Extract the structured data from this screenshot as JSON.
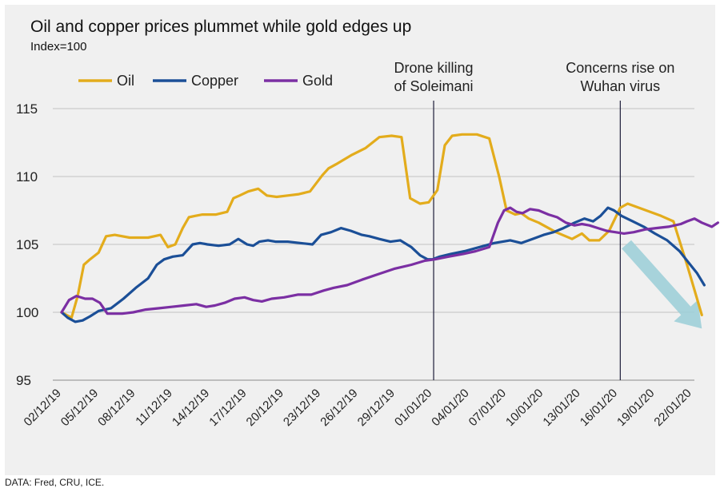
{
  "chart_data": {
    "type": "line",
    "title": "Oil and copper prices plummet while gold edges up",
    "subtitle": "Index=100",
    "source": "DATA: Fred, CRU, ICE.",
    "ylabel": "",
    "xlabel": "",
    "ylim": [
      95,
      115
    ],
    "yticks": [
      95,
      100,
      105,
      110,
      115
    ],
    "grid": true,
    "legend_position": "top-left",
    "x_start": "2019-12-02",
    "x_end": "2020-01-24",
    "x_ticks": [
      {
        "day": 0,
        "label": "02/12/19"
      },
      {
        "day": 3,
        "label": "05/12/19"
      },
      {
        "day": 6,
        "label": "08/12/19"
      },
      {
        "day": 9,
        "label": "11/12/19"
      },
      {
        "day": 12,
        "label": "14/12/19"
      },
      {
        "day": 15,
        "label": "17/12/19"
      },
      {
        "day": 18,
        "label": "20/12/19"
      },
      {
        "day": 21,
        "label": "23/12/19"
      },
      {
        "day": 24,
        "label": "26/12/19"
      },
      {
        "day": 27,
        "label": "29/12/19"
      },
      {
        "day": 30,
        "label": "01/01/20"
      },
      {
        "day": 33,
        "label": "04/01/20"
      },
      {
        "day": 36,
        "label": "07/01/20"
      },
      {
        "day": 39,
        "label": "10/01/20"
      },
      {
        "day": 42,
        "label": "13/01/20"
      },
      {
        "day": 45,
        "label": "16/01/20"
      },
      {
        "day": 48,
        "label": "19/01/20"
      },
      {
        "day": 51,
        "label": "22/01/20"
      }
    ],
    "series": [
      {
        "name": "Oil",
        "color": "#e3ac1c",
        "days": [
          0,
          0.8,
          1.3,
          1.8,
          2.3,
          3.0,
          3.6,
          4.3,
          5.5,
          7.0,
          8.0,
          8.6,
          9.2,
          9.8,
          10.3,
          10.8,
          11.4,
          12.5,
          13.4,
          13.9,
          14.4,
          15.1,
          15.9,
          16.6,
          17.4,
          18.3,
          19.2,
          20.1,
          21.1,
          21.6,
          22.2,
          23.5,
          24.6,
          25.7,
          26.7,
          27.5,
          28.2,
          29.0,
          29.7,
          30.4,
          31.0,
          31.6,
          32.4,
          33.6,
          34.6,
          35.4,
          36.0,
          36.7,
          37.2,
          37.8,
          38.6,
          40.0,
          41.3,
          42.1,
          42.7,
          43.5,
          44.3,
          45.2,
          45.8,
          47.0,
          48.5,
          49.5,
          50.6,
          51.8
        ],
        "values": [
          100.0,
          99.6,
          101.2,
          103.5,
          103.9,
          104.4,
          105.6,
          105.7,
          105.5,
          105.5,
          105.7,
          104.8,
          105.0,
          106.2,
          107.0,
          107.1,
          107.2,
          107.2,
          107.4,
          108.4,
          108.6,
          108.9,
          109.1,
          108.6,
          108.5,
          108.6,
          108.7,
          108.9,
          110.1,
          110.6,
          110.9,
          111.6,
          112.1,
          112.9,
          113.0,
          112.9,
          108.4,
          108.0,
          108.1,
          109.0,
          112.3,
          113.0,
          113.1,
          113.1,
          112.8,
          110.0,
          107.5,
          107.2,
          107.3,
          106.9,
          106.6,
          105.9,
          105.4,
          105.8,
          105.3,
          105.3,
          106.0,
          107.7,
          108.0,
          107.6,
          107.1,
          106.7,
          103.5,
          99.8
        ]
      },
      {
        "name": "Copper",
        "color": "#1b4f97",
        "days": [
          0,
          0.5,
          1.1,
          1.7,
          2.3,
          3.0,
          4.0,
          5.0,
          6.0,
          7.0,
          7.7,
          8.3,
          9.0,
          9.8,
          10.6,
          11.2,
          11.8,
          12.7,
          13.6,
          14.3,
          15.0,
          15.5,
          16.0,
          16.7,
          17.3,
          18.3,
          19.3,
          20.3,
          21.0,
          21.8,
          22.6,
          23.4,
          24.3,
          24.9,
          25.7,
          26.6,
          27.4,
          28.3,
          29.0,
          29.6,
          30.0,
          30.6,
          31.5,
          32.6,
          33.8,
          35.0,
          36.3,
          37.2,
          38.1,
          39.0,
          39.8,
          40.6,
          41.5,
          42.3,
          43.0,
          43.6,
          44.2,
          44.7,
          45.3,
          46.2,
          47.1,
          48.0,
          49.0,
          50.0,
          50.6,
          51.4,
          52.0
        ],
        "values": [
          100.0,
          99.6,
          99.3,
          99.4,
          99.7,
          100.1,
          100.3,
          101.0,
          101.8,
          102.5,
          103.5,
          103.9,
          104.1,
          104.2,
          105.0,
          105.1,
          105.0,
          104.9,
          105.0,
          105.4,
          105.0,
          104.9,
          105.2,
          105.3,
          105.2,
          105.2,
          105.1,
          105.0,
          105.7,
          105.9,
          106.2,
          106.0,
          105.7,
          105.6,
          105.4,
          105.2,
          105.3,
          104.8,
          104.2,
          103.9,
          103.9,
          104.1,
          104.3,
          104.5,
          104.8,
          105.1,
          105.3,
          105.1,
          105.4,
          105.7,
          105.9,
          106.2,
          106.6,
          106.9,
          106.7,
          107.1,
          107.7,
          107.5,
          107.1,
          106.7,
          106.3,
          105.8,
          105.3,
          104.5,
          103.8,
          102.9,
          102.0
        ]
      },
      {
        "name": "Gold",
        "color": "#7b2fa3",
        "days": [
          0,
          0.6,
          1.2,
          1.9,
          2.5,
          3.1,
          3.7,
          4.2,
          4.9,
          5.8,
          6.8,
          7.9,
          8.9,
          9.9,
          10.9,
          11.7,
          12.4,
          13.2,
          14.0,
          14.8,
          15.5,
          16.2,
          17.0,
          18.0,
          19.1,
          20.2,
          21.2,
          22.0,
          23.1,
          24.3,
          25.6,
          26.9,
          28.3,
          29.4,
          30.2,
          31.3,
          32.5,
          33.5,
          34.6,
          35.3,
          35.8,
          36.3,
          36.8,
          37.3,
          37.9,
          38.6,
          39.4,
          40.1,
          40.8,
          41.5,
          42.1,
          42.7,
          43.4,
          44.1,
          44.8,
          45.5,
          46.3,
          47.2,
          48.1,
          49.1,
          50.1,
          50.6,
          51.2,
          51.8,
          52.6,
          53.1
        ],
        "values": [
          100.0,
          100.9,
          101.2,
          101.0,
          101.0,
          100.7,
          99.9,
          99.9,
          99.9,
          100.0,
          100.2,
          100.3,
          100.4,
          100.5,
          100.6,
          100.4,
          100.5,
          100.7,
          101.0,
          101.1,
          100.9,
          100.8,
          101.0,
          101.1,
          101.3,
          101.3,
          101.6,
          101.8,
          102.0,
          102.4,
          102.8,
          103.2,
          103.5,
          103.8,
          103.9,
          104.1,
          104.3,
          104.5,
          104.8,
          106.6,
          107.5,
          107.7,
          107.4,
          107.3,
          107.6,
          107.5,
          107.2,
          107.0,
          106.6,
          106.4,
          106.5,
          106.4,
          106.2,
          106.0,
          105.9,
          105.8,
          105.9,
          106.1,
          106.2,
          106.3,
          106.5,
          106.7,
          106.9,
          106.6,
          106.3,
          106.6
        ]
      }
    ],
    "annotations": [
      {
        "day": 30.1,
        "lines": [
          "Drone killing",
          "of Soleimani"
        ]
      },
      {
        "day": 45.2,
        "lines": [
          "Concerns rise on",
          "Wuhan virus"
        ]
      }
    ],
    "trend_arrow": {
      "from_day": 45.7,
      "from_value": 105.0,
      "to_day": 51.8,
      "to_value": 98.8,
      "color": "#9fcfd8"
    }
  }
}
